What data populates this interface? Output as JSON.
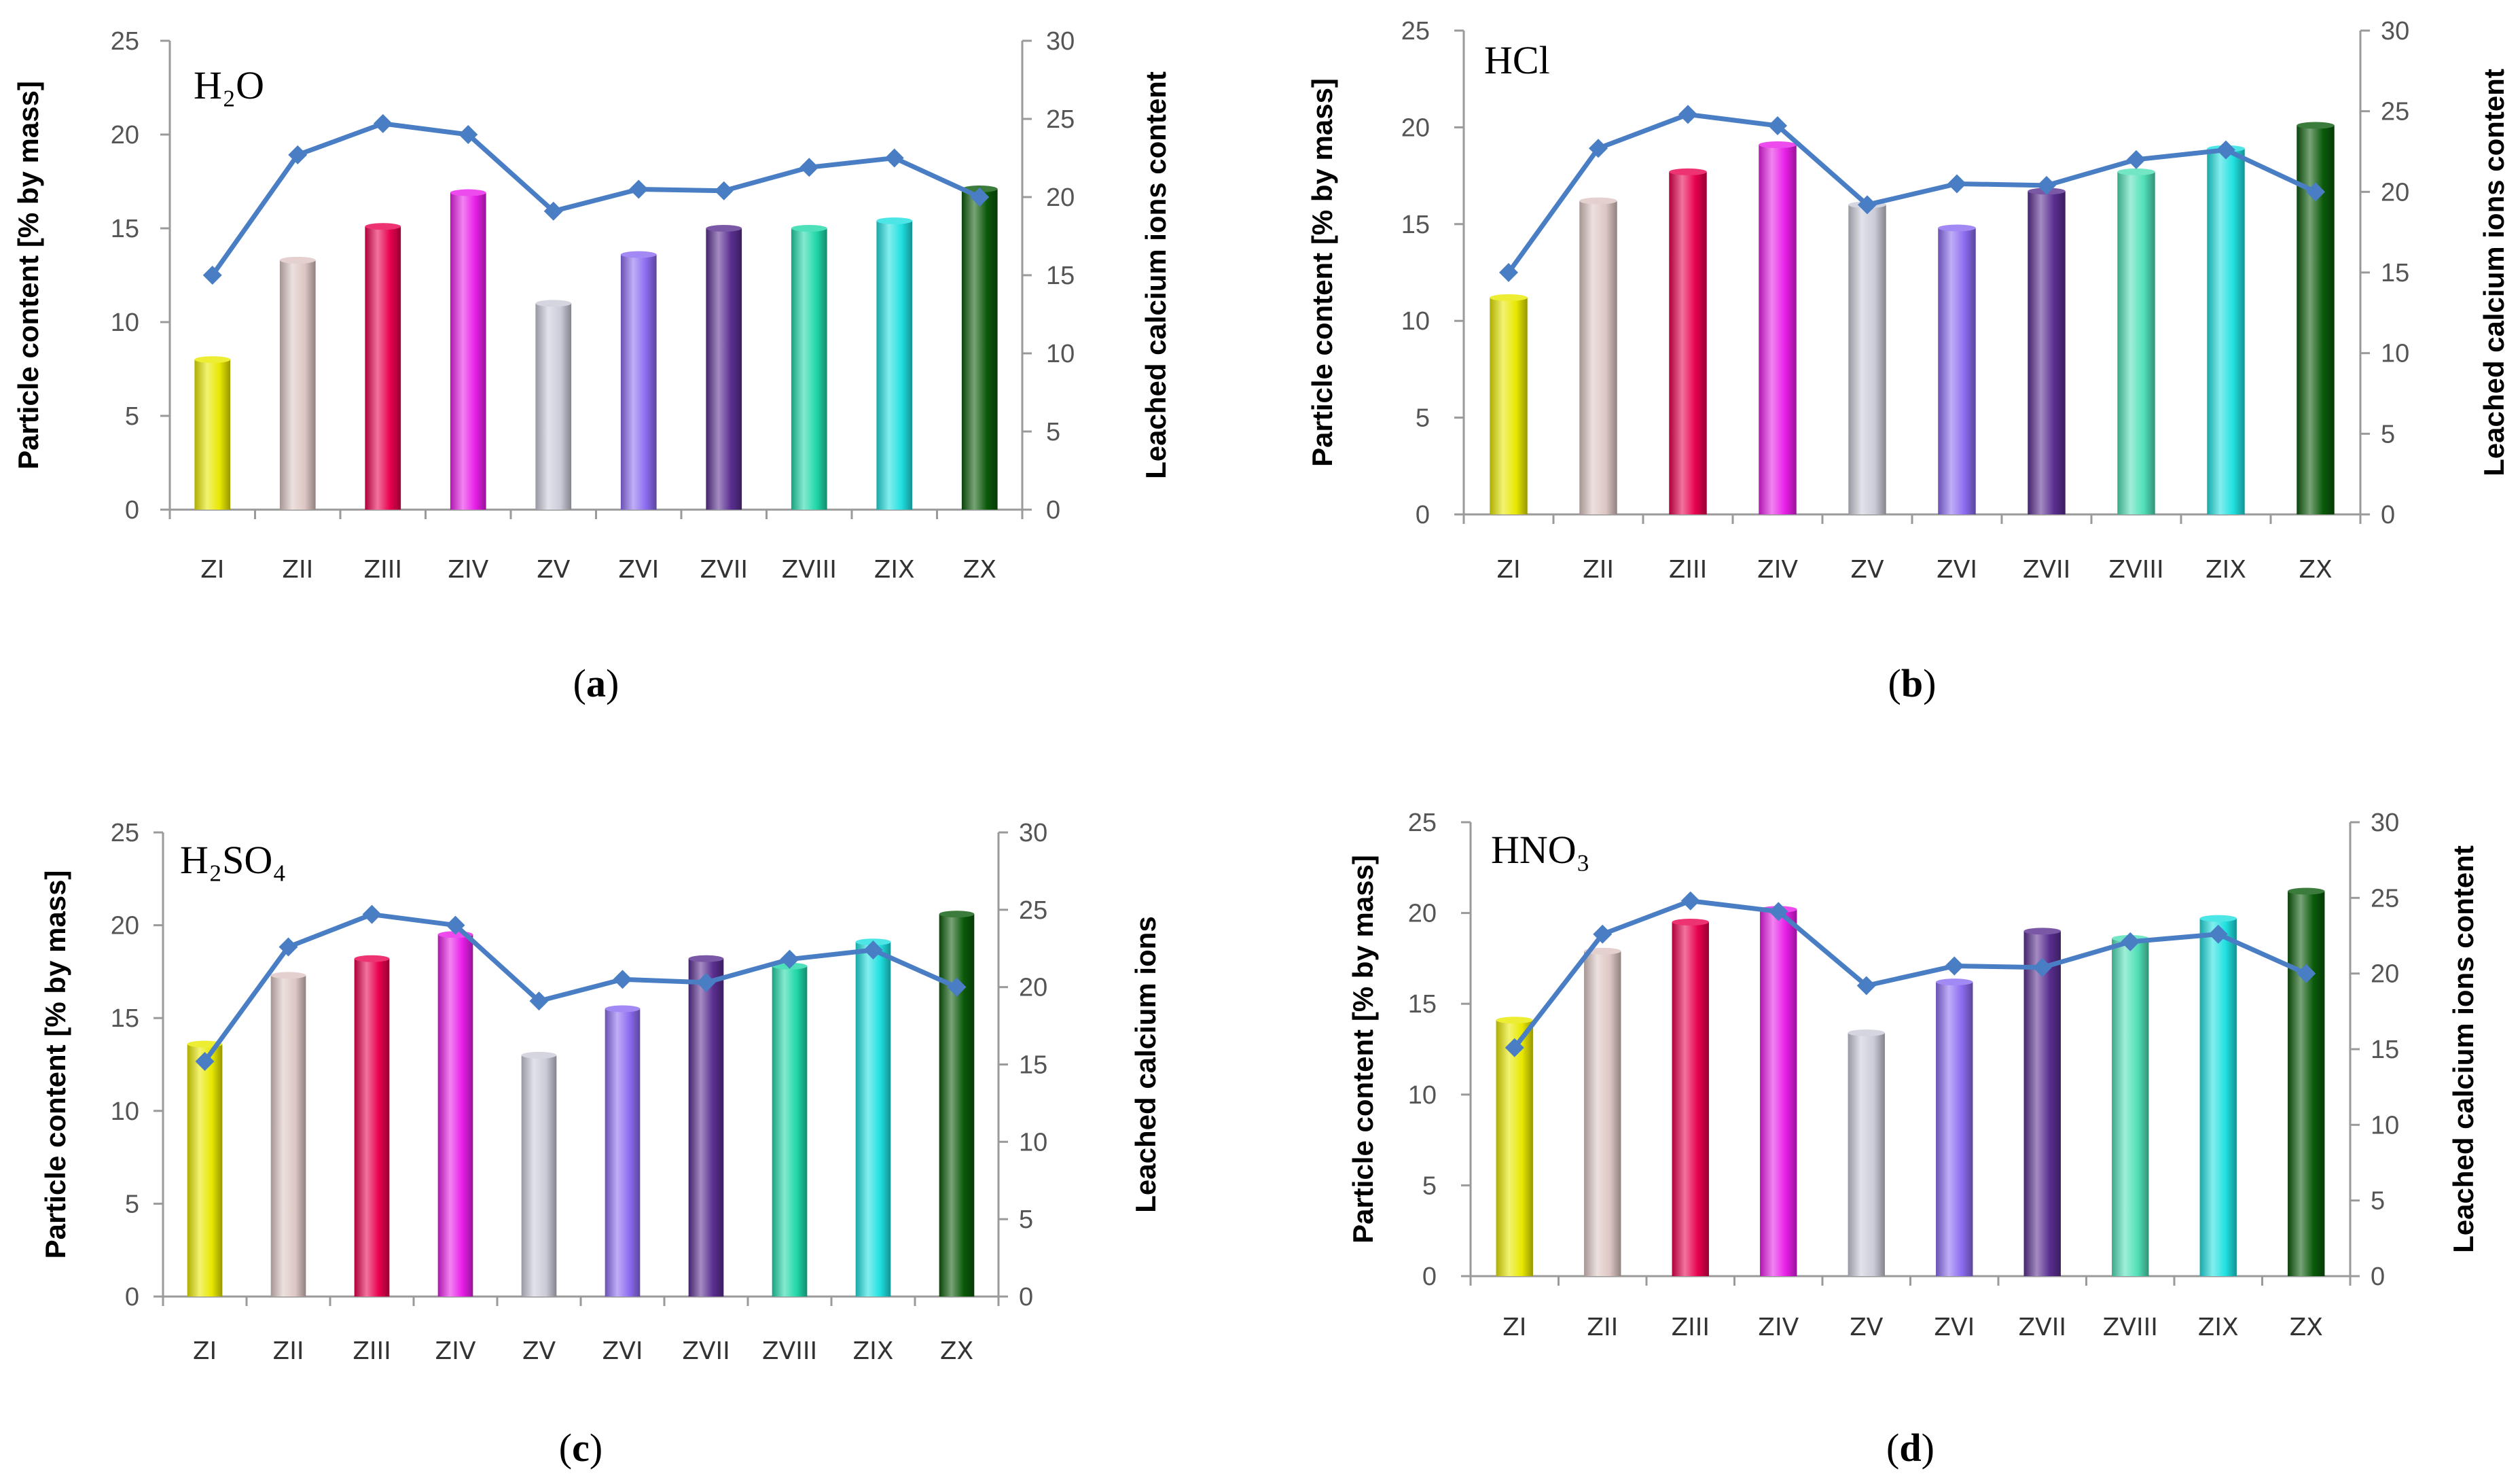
{
  "chart_data": [
    {
      "type": "bar",
      "panel_label": "a",
      "title": "H₂O",
      "categories": [
        "ZI",
        "ZII",
        "ZIII",
        "ZIV",
        "ZV",
        "ZVI",
        "ZVII",
        "ZVIII",
        "ZIX",
        "ZX"
      ],
      "ylabel": "Particle content [% by mass]",
      "y2label": "Leached  calcium ions content",
      "ylim": [
        0,
        25
      ],
      "y2lim": [
        0,
        30
      ],
      "yticks": [
        "0",
        "5",
        "10",
        "15",
        "20",
        "25"
      ],
      "y2ticks": [
        "0",
        "5",
        "10",
        "15",
        "20",
        "25",
        "30"
      ],
      "series": [
        {
          "kind": "bar",
          "axis": "left",
          "values": [
            8.0,
            13.3,
            15.1,
            16.9,
            11.0,
            13.6,
            15.0,
            15.0,
            15.4,
            17.1
          ]
        },
        {
          "kind": "line",
          "axis": "right",
          "values": [
            15.0,
            22.7,
            24.7,
            24.0,
            19.1,
            20.5,
            20.4,
            21.9,
            22.5,
            20.0
          ]
        }
      ],
      "bar_colors": [
        "#e8e800",
        "#ddc6c3",
        "#e8004f",
        "#e81ee8",
        "#cbcbd8",
        "#8c6cf0",
        "#5a2e90",
        "#20d8a8",
        "#20e0e0",
        "#0a5a0a"
      ],
      "line_color": "#4a7ec4",
      "grid": false,
      "legend": "none"
    },
    {
      "type": "bar",
      "panel_label": "b",
      "title": "HCl",
      "categories": [
        "ZI",
        "ZII",
        "ZIII",
        "ZIV",
        "ZV",
        "ZVI",
        "ZVII",
        "ZVIII",
        "ZIX",
        "ZX"
      ],
      "ylabel": "Particle content [% by mass]",
      "y2label": "Leached  calcium ions content",
      "ylim": [
        0,
        25
      ],
      "y2lim": [
        0,
        30
      ],
      "yticks": [
        "0",
        "5",
        "10",
        "15",
        "20",
        "25"
      ],
      "y2ticks": [
        "0",
        "5",
        "10",
        "15",
        "20",
        "25",
        "30"
      ],
      "series": [
        {
          "kind": "bar",
          "axis": "left",
          "values": [
            11.2,
            16.2,
            17.7,
            19.1,
            16.0,
            14.8,
            16.7,
            17.7,
            18.9,
            20.1
          ]
        },
        {
          "kind": "line",
          "axis": "right",
          "values": [
            15.0,
            22.7,
            24.8,
            24.1,
            19.2,
            20.5,
            20.4,
            22.0,
            22.6,
            20.0
          ]
        }
      ],
      "bar_colors": [
        "#e8e800",
        "#ddc6c3",
        "#e8004f",
        "#e81ee8",
        "#cbcbd8",
        "#8c6cf0",
        "#5a2e90",
        "#50e0b8",
        "#20e0e0",
        "#0a5a0a"
      ],
      "line_color": "#4a7ec4",
      "grid": false,
      "legend": "none"
    },
    {
      "type": "bar",
      "panel_label": "c",
      "title": "H₂SO₄",
      "categories": [
        "ZI",
        "ZII",
        "ZIII",
        "ZIV",
        "ZV",
        "ZVI",
        "ZVII",
        "ZVIII",
        "ZIX",
        "ZX"
      ],
      "ylabel": "Particle content [% by mass]",
      "y2label": "Leached  calcium ions",
      "ylim": [
        0,
        25
      ],
      "y2lim": [
        0,
        30
      ],
      "yticks": [
        "0",
        "5",
        "10",
        "15",
        "20",
        "25"
      ],
      "y2ticks": [
        "0",
        "5",
        "10",
        "15",
        "20",
        "25",
        "30"
      ],
      "series": [
        {
          "kind": "bar",
          "axis": "left",
          "values": [
            13.6,
            17.3,
            18.2,
            19.5,
            13.0,
            15.5,
            18.2,
            17.8,
            19.1,
            20.6
          ]
        },
        {
          "kind": "line",
          "axis": "right",
          "values": [
            15.2,
            22.6,
            24.7,
            24.0,
            19.1,
            20.5,
            20.3,
            21.8,
            22.4,
            20.0
          ]
        }
      ],
      "bar_colors": [
        "#e8e800",
        "#ddc6c3",
        "#e8004f",
        "#e81ee8",
        "#cbcbd8",
        "#8c6cf0",
        "#5a2e90",
        "#20d8a8",
        "#20e0e0",
        "#0a5a0a"
      ],
      "line_color": "#4a7ec4",
      "grid": false,
      "legend": "none"
    },
    {
      "type": "bar",
      "panel_label": "d",
      "title": "HNO₃",
      "categories": [
        "ZI",
        "ZII",
        "ZIII",
        "ZIV",
        "ZV",
        "ZVI",
        "ZVII",
        "ZVIII",
        "ZIX",
        "ZX"
      ],
      "ylabel": "Particle content [% by mass]",
      "y2label": "Leached  calcium ions content",
      "ylim": [
        0,
        25
      ],
      "y2lim": [
        0,
        30
      ],
      "yticks": [
        "0",
        "5",
        "10",
        "15",
        "20",
        "25"
      ],
      "y2ticks": [
        "0",
        "5",
        "10",
        "15",
        "20",
        "25",
        "30"
      ],
      "series": [
        {
          "kind": "bar",
          "axis": "left",
          "values": [
            14.1,
            17.9,
            19.5,
            20.2,
            13.4,
            16.2,
            19.0,
            18.6,
            19.7,
            21.2
          ]
        },
        {
          "kind": "line",
          "axis": "right",
          "values": [
            15.1,
            22.6,
            24.8,
            24.1,
            19.2,
            20.5,
            20.4,
            22.1,
            22.6,
            20.0
          ]
        }
      ],
      "bar_colors": [
        "#e8e800",
        "#ddc6c3",
        "#e8004f",
        "#e81ee8",
        "#cbcbd8",
        "#8c6cf0",
        "#5a2e90",
        "#50e0b8",
        "#20e0e0",
        "#0a5a0a"
      ],
      "line_color": "#4a7ec4",
      "grid": false,
      "legend": "none"
    }
  ]
}
